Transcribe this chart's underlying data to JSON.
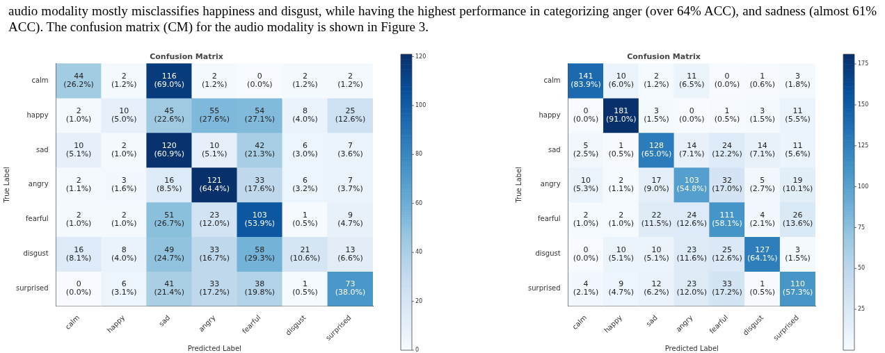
{
  "chart_data": [
    {
      "type": "heatmap",
      "title": "Confusion Matrix",
      "xlabel": "Predicted Label",
      "ylabel": "True Label",
      "annotations": [
        "audio modality mostly misclassifies happiness and disgust, while having the highest performance in categorizing anger (over 64% ACC), and sadness (almost 61% ACC). The confusion matrix (CM) for the audio modality is shown in Figure 3."
      ],
      "categories": [
        "calm",
        "happy",
        "sad",
        "angry",
        "fearful",
        "disgust",
        "surprised"
      ],
      "y_categories": [
        "calm",
        "happy",
        "sad",
        "angry",
        "fearful",
        "disgust",
        "surprised"
      ],
      "cells": [
        [
          44,
          2,
          116,
          2,
          0,
          2,
          2
        ],
        [
          2,
          10,
          45,
          55,
          54,
          8,
          25
        ],
        [
          10,
          2,
          120,
          10,
          42,
          6,
          7
        ],
        [
          2,
          3,
          16,
          121,
          33,
          6,
          7
        ],
        [
          2,
          2,
          51,
          23,
          103,
          1,
          9
        ],
        [
          16,
          8,
          49,
          33,
          58,
          21,
          13
        ],
        [
          0,
          6,
          41,
          33,
          38,
          1,
          73
        ]
      ],
      "cell_labels": [
        [
          "44\n(26.2%)",
          "2\n(1.2%)",
          "116\n(69.0%)",
          "2\n(1.2%)",
          "0\n(0.0%)",
          "2\n(1.2%)",
          "2\n(1.2%)"
        ],
        [
          "2\n(1.0%)",
          "10\n(5.0%)",
          "45\n(22.6%)",
          "55\n(27.6%)",
          "54\n(27.1%)",
          "8\n(4.0%)",
          "25\n(12.6%)"
        ],
        [
          "10\n(5.1%)",
          "2\n(1.0%)",
          "120\n(60.9%)",
          "10\n(5.1%)",
          "42\n(21.3%)",
          "6\n(3.0%)",
          "7\n(3.6%)"
        ],
        [
          "2\n(1.1%)",
          "3\n(1.6%)",
          "16\n(8.5%)",
          "121\n(64.4%)",
          "33\n(17.6%)",
          "6\n(3.2%)",
          "7\n(3.7%)"
        ],
        [
          "2\n(1.0%)",
          "2\n(1.0%)",
          "51\n(26.7%)",
          "23\n(12.0%)",
          "103\n(53.9%)",
          "1\n(0.5%)",
          "9\n(4.7%)"
        ],
        [
          "16\n(8.1%)",
          "8\n(4.0%)",
          "49\n(24.7%)",
          "33\n(16.7%)",
          "58\n(29.3%)",
          "21\n(10.6%)",
          "13\n(6.6%)"
        ],
        [
          "0\n(0.0%)",
          "6\n(3.1%)",
          "41\n(21.4%)",
          "33\n(17.2%)",
          "38\n(19.8%)",
          "1\n(0.5%)",
          "73\n(38.0%)"
        ]
      ],
      "clim": [
        0,
        121
      ],
      "cticks": [
        0,
        20,
        40,
        60,
        80,
        100,
        120
      ]
    },
    {
      "type": "heatmap",
      "title": "Confusion Matrix",
      "xlabel": "Predicted Label",
      "ylabel": "True Label",
      "categories": [
        "calm",
        "happy",
        "sad",
        "angry",
        "fearful",
        "disgust",
        "surprised"
      ],
      "y_categories": [
        "calm",
        "happy",
        "sad",
        "angry",
        "fearful",
        "disgust",
        "surprised"
      ],
      "cells": [
        [
          141,
          10,
          2,
          11,
          0,
          1,
          3
        ],
        [
          0,
          181,
          3,
          0,
          1,
          3,
          11
        ],
        [
          5,
          1,
          128,
          14,
          24,
          14,
          11
        ],
        [
          10,
          2,
          17,
          103,
          32,
          5,
          19
        ],
        [
          2,
          2,
          22,
          24,
          111,
          4,
          26
        ],
        [
          0,
          10,
          10,
          23,
          25,
          127,
          3
        ],
        [
          4,
          9,
          12,
          23,
          33,
          1,
          110
        ]
      ],
      "cell_labels": [
        [
          "141\n(83.9%)",
          "10\n(6.0%)",
          "2\n(1.2%)",
          "11\n(6.5%)",
          "0\n(0.0%)",
          "1\n(0.6%)",
          "3\n(1.8%)"
        ],
        [
          "0\n(0.0%)",
          "181\n(91.0%)",
          "3\n(1.5%)",
          "0\n(0.0%)",
          "1\n(0.5%)",
          "3\n(1.5%)",
          "11\n(5.5%)"
        ],
        [
          "5\n(2.5%)",
          "1\n(0.5%)",
          "128\n(65.0%)",
          "14\n(7.1%)",
          "24\n(12.2%)",
          "14\n(7.1%)",
          "11\n(5.6%)"
        ],
        [
          "10\n(5.3%)",
          "2\n(1.1%)",
          "17\n(9.0%)",
          "103\n(54.8%)",
          "32\n(17.0%)",
          "5\n(2.7%)",
          "19\n(10.1%)"
        ],
        [
          "2\n(1.0%)",
          "2\n(1.0%)",
          "22\n(11.5%)",
          "24\n(12.6%)",
          "111\n(58.1%)",
          "4\n(2.1%)",
          "26\n(13.6%)"
        ],
        [
          "0\n(0.0%)",
          "10\n(5.1%)",
          "10\n(5.1%)",
          "23\n(11.6%)",
          "25\n(12.6%)",
          "127\n(64.1%)",
          "3\n(1.5%)"
        ],
        [
          "4\n(2.1%)",
          "9\n(4.7%)",
          "12\n(6.2%)",
          "23\n(12.0%)",
          "33\n(17.2%)",
          "1\n(0.5%)",
          "110\n(57.3%)"
        ]
      ],
      "clim": [
        0,
        181
      ],
      "cticks": [
        25,
        50,
        75,
        100,
        125,
        150,
        175
      ]
    }
  ]
}
